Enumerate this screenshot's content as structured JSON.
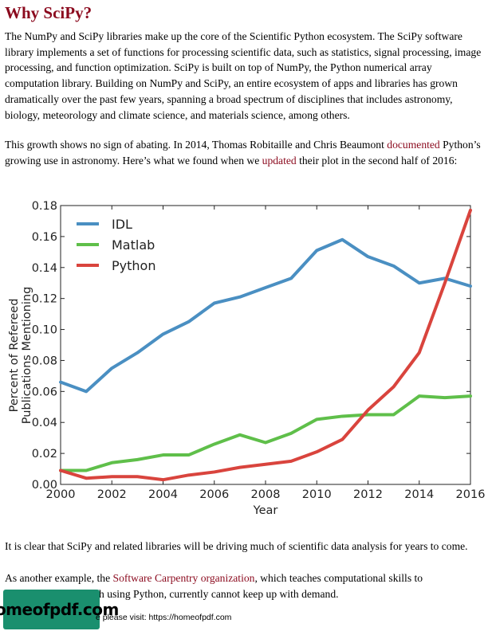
{
  "heading": "Why SciPy?",
  "para1": "The NumPy and SciPy libraries make up the core of the Scientific Python ecosystem. The SciPy software library implements a set of functions for processing scientific data, such as statistics, signal processing, image processing, and function optimization. SciPy is built on top of NumPy, the Python numerical array computation library. Building on NumPy and SciPy, an entire ecosystem of apps and libraries has grown dramatically over the past few years, spanning a broad spectrum of disciplines that includes astronomy, biology, meteorology and climate science, and materials science, among others.",
  "para2": {
    "part1": "This growth shows no sign of abating. In 2014, Thomas Robitaille and Chris Beaumont ",
    "link1": "documented",
    "part2": " Python’s growing use in astronomy. Here’s what we found when we ",
    "link2": "updated",
    "part3": " their plot in the second half of 2016:"
  },
  "para3": "It is clear that SciPy and related libraries will be driving much of scientific data analysis for years to come.",
  "para4": {
    "part1": "As another example, the ",
    "link": "Software Carpentry organization",
    "part2": ", which teaches computational skills to",
    "part3": "h using Python, currently cannot keep up with demand."
  },
  "footer": {
    "badge": "homeofpdf.com",
    "text": "e please visit: https://homeofpdf.com"
  },
  "chart_data": {
    "type": "line",
    "xlabel": "Year",
    "ylabel_lines": [
      "Percent of Refereed",
      "Publications Mentioning"
    ],
    "xlim": [
      2000,
      2016
    ],
    "ylim": [
      0.0,
      0.18
    ],
    "x_ticks": [
      "2000",
      "2002",
      "2004",
      "2006",
      "2008",
      "2010",
      "2012",
      "2014",
      "2016"
    ],
    "y_ticks": [
      "0.00",
      "0.02",
      "0.04",
      "0.06",
      "0.08",
      "0.10",
      "0.12",
      "0.14",
      "0.16",
      "0.18"
    ],
    "legend_position": "top-left",
    "grid": false,
    "x": [
      2000,
      2001,
      2002,
      2003,
      2004,
      2005,
      2006,
      2007,
      2008,
      2009,
      2010,
      2011,
      2012,
      2013,
      2014,
      2015,
      2016
    ],
    "series": [
      {
        "name": "IDL",
        "color": "#4a8fc2",
        "values": [
          0.066,
          0.06,
          0.075,
          0.085,
          0.097,
          0.105,
          0.117,
          0.121,
          0.127,
          0.133,
          0.151,
          0.158,
          0.147,
          0.141,
          0.13,
          0.133,
          0.128
        ]
      },
      {
        "name": "Matlab",
        "color": "#5fbf4a",
        "values": [
          0.009,
          0.009,
          0.014,
          0.016,
          0.019,
          0.019,
          0.026,
          0.032,
          0.027,
          0.033,
          0.042,
          0.044,
          0.045,
          0.045,
          0.057,
          0.056,
          0.057
        ]
      },
      {
        "name": "Python",
        "color": "#d9443d",
        "values": [
          0.009,
          0.004,
          0.005,
          0.005,
          0.003,
          0.006,
          0.008,
          0.011,
          0.013,
          0.015,
          0.021,
          0.029,
          0.048,
          0.063,
          0.085,
          0.13,
          0.177
        ]
      }
    ]
  }
}
